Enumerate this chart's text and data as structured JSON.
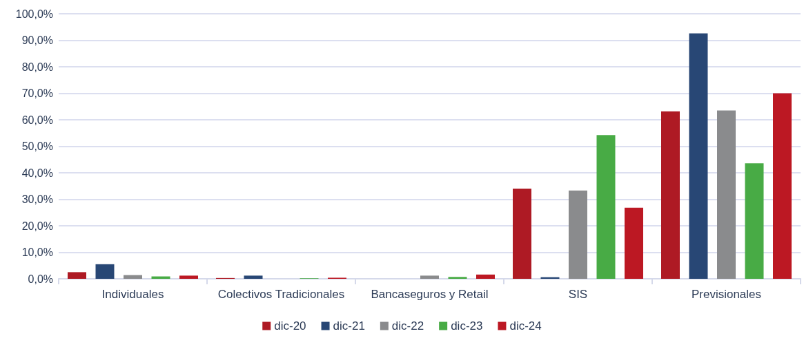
{
  "chart_data": {
    "type": "bar",
    "categories": [
      "Individuales",
      "Colectivos Tradicionales",
      "Bancaseguros y Retail",
      "SIS",
      "Previsionales"
    ],
    "series": [
      {
        "name": "dic-20",
        "color": "#ae1a24",
        "values": [
          2.5,
          0.3,
          0,
          34,
          63.2
        ]
      },
      {
        "name": "dic-21",
        "color": "#284775",
        "values": [
          5.5,
          1.2,
          0,
          0.6,
          92.6
        ]
      },
      {
        "name": "dic-22",
        "color": "#8a8b8d",
        "values": [
          1.4,
          null,
          1.2,
          33.3,
          63.5
        ]
      },
      {
        "name": "dic-23",
        "color": "#48ab45",
        "values": [
          0.9,
          0.2,
          0.7,
          54.2,
          43.6
        ]
      },
      {
        "name": "dic-24",
        "color": "#bc1823",
        "values": [
          1.2,
          0.4,
          1.6,
          26.8,
          70
        ]
      }
    ],
    "ylim": [
      0,
      100
    ],
    "yticks": [
      {
        "value": 0,
        "label": "0,0%"
      },
      {
        "value": 10,
        "label": "10,0%"
      },
      {
        "value": 20,
        "label": "20,0%"
      },
      {
        "value": 30,
        "label": "30,0%"
      },
      {
        "value": 40,
        "label": "40,0%"
      },
      {
        "value": 50,
        "label": "50,0%"
      },
      {
        "value": 60,
        "label": "60,0%"
      },
      {
        "value": 70,
        "label": "70,0%"
      },
      {
        "value": 80,
        "label": "80,0%"
      },
      {
        "value": 90,
        "label": "90,0%"
      },
      {
        "value": 100,
        "label": "100,0%"
      }
    ],
    "grid": "y",
    "legend": "bottom"
  }
}
